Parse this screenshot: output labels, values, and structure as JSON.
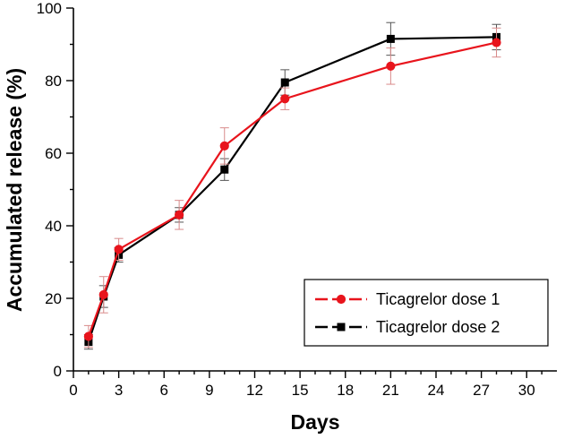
{
  "chart_data": {
    "type": "line",
    "title": "",
    "xlabel": "Days",
    "ylabel": "Accumulated release (%)",
    "xlim": [
      0,
      32
    ],
    "ylim": [
      0,
      100
    ],
    "xticks": [
      0,
      3,
      6,
      9,
      12,
      15,
      18,
      21,
      24,
      27,
      30
    ],
    "xticks_minor": [
      1,
      2,
      4,
      5,
      7,
      8,
      10,
      11,
      13,
      14,
      16,
      17,
      19,
      20,
      22,
      23,
      25,
      26,
      28,
      29,
      31
    ],
    "yticks": [
      0,
      20,
      40,
      60,
      80,
      100
    ],
    "grid": false,
    "legend_position": "bottom-right",
    "series": [
      {
        "name": "Ticagrelor dose 1",
        "color": "#e8141c",
        "marker": "circle",
        "x": [
          1,
          2,
          3,
          7,
          10,
          14,
          21,
          28
        ],
        "y": [
          9.5,
          21.0,
          33.5,
          43.0,
          62.0,
          75.0,
          84.0,
          90.5
        ],
        "err": [
          3.0,
          5.0,
          3.0,
          4.0,
          5.0,
          3.0,
          5.0,
          4.0
        ]
      },
      {
        "name": "Ticagrelor dose 2",
        "color": "#000000",
        "marker": "square",
        "x": [
          1,
          2,
          3,
          7,
          10,
          14,
          21,
          28
        ],
        "y": [
          8.0,
          20.5,
          32.0,
          43.0,
          55.5,
          79.5,
          91.5,
          92.0
        ],
        "err": [
          2.0,
          3.0,
          2.0,
          2.0,
          3.0,
          3.5,
          4.5,
          3.5
        ]
      }
    ]
  }
}
